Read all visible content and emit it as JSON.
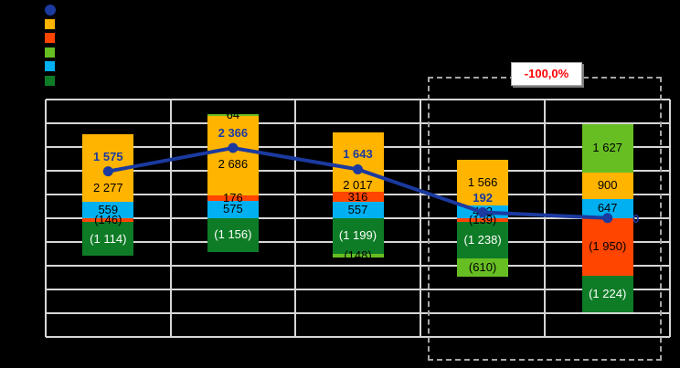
{
  "canvas": {
    "background": "#000000",
    "grid_color": "#D6D6D6"
  },
  "legend": {
    "position": "top-left",
    "text_visible": false,
    "items": [
      {
        "series": "line",
        "shape": "circle"
      },
      {
        "series": "orange",
        "shape": "square"
      },
      {
        "series": "red",
        "shape": "square"
      },
      {
        "series": "lightgreen",
        "shape": "square"
      },
      {
        "series": "cyan",
        "shape": "square"
      },
      {
        "series": "darkgreen",
        "shape": "square"
      }
    ]
  },
  "chart_data": {
    "type": "bar",
    "subtype": "stacked-bars-with-line-overlay",
    "title": "",
    "xlabel": "",
    "ylabel": "",
    "ylim": [
      -4000,
      4000
    ],
    "grid_step": 800,
    "grid": true,
    "categories": [
      "",
      "",
      "",
      "",
      ""
    ],
    "series_colors": {
      "line": "#1B3AA0",
      "orange": "#FFB400",
      "red": "#FF4500",
      "lightgreen": "#67BE23",
      "cyan": "#00B0F0",
      "darkgreen": "#0E7C26"
    },
    "bars": [
      {
        "pos": [
          {
            "series": "cyan",
            "value": 559,
            "label": "559"
          },
          {
            "series": "orange",
            "value": 2277,
            "label": "2 277"
          }
        ],
        "neg": [
          {
            "series": "red",
            "value": 146,
            "label": "(146)"
          },
          {
            "series": "darkgreen",
            "value": 1114,
            "label": "(1 114)"
          }
        ]
      },
      {
        "pos": [
          {
            "series": "cyan",
            "value": 575,
            "label": "575"
          },
          {
            "series": "red",
            "value": 176,
            "label": "176"
          },
          {
            "series": "orange",
            "value": 2686,
            "label": "2 686"
          },
          {
            "series": "lightgreen",
            "value": 64,
            "label": "64"
          }
        ],
        "neg": [
          {
            "series": "darkgreen",
            "value": 1156,
            "label": "(1 156)"
          }
        ]
      },
      {
        "pos": [
          {
            "series": "cyan",
            "value": 557,
            "label": "557"
          },
          {
            "series": "red",
            "value": 316,
            "label": "316"
          },
          {
            "series": "orange",
            "value": 2017,
            "label": "2 017"
          }
        ],
        "neg": [
          {
            "series": "darkgreen",
            "value": 1199,
            "label": "(1 199)"
          },
          {
            "series": "lightgreen",
            "value": 148,
            "label": "(148)"
          }
        ]
      },
      {
        "pos": [
          {
            "series": "cyan",
            "value": 412,
            "label": "412"
          },
          {
            "series": "orange",
            "value": 1566,
            "label": "1 566"
          }
        ],
        "neg": [
          {
            "series": "red",
            "value": 139,
            "label": "(139)"
          },
          {
            "series": "darkgreen",
            "value": 1238,
            "label": "(1 238)"
          },
          {
            "series": "lightgreen",
            "value": 610,
            "label": "(610)"
          }
        ]
      },
      {
        "pos": [
          {
            "series": "cyan",
            "value": 647,
            "label": "647"
          },
          {
            "series": "orange",
            "value": 900,
            "label": "900"
          },
          {
            "series": "lightgreen",
            "value": 1627,
            "label": "1 627"
          }
        ],
        "neg": [
          {
            "series": "red",
            "value": 1950,
            "label": "(1 950)"
          },
          {
            "series": "darkgreen",
            "value": 1224,
            "label": "(1 224)"
          }
        ]
      }
    ],
    "line": {
      "values": [
        1575,
        2366,
        1643,
        192,
        0
      ],
      "labels": [
        "1 575",
        "2 366",
        "1 643",
        "192",
        "0"
      ],
      "label_pos": [
        "above",
        "above",
        "above",
        "above",
        "right"
      ]
    },
    "annotation": {
      "text": "-100,0%",
      "text_color": "#FF0000",
      "box_background": "#FFFFFF",
      "box_border": "#A6A6A6",
      "applies_to_bars": [
        4,
        5
      ]
    }
  }
}
